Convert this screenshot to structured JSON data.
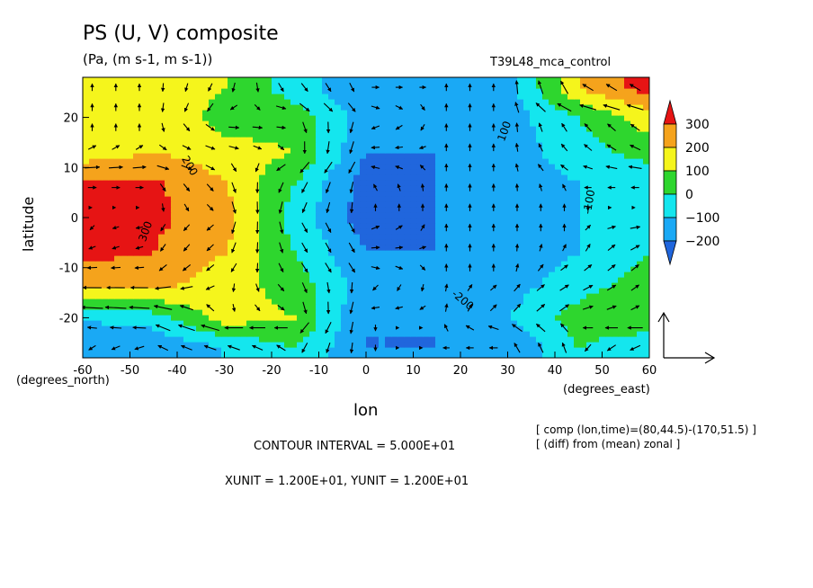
{
  "title": "PS (U, V) composite",
  "subtitle": "(Pa, (m s-1, m s-1))",
  "run_label": "T39L48_mca_control",
  "x_axis_label": "lon",
  "x_units": "(degrees_east)",
  "y_axis_label": "latitude",
  "y_units": "(degrees_north)",
  "note_lines": [
    "[ comp (lon,time)=(80,44.5)-(170,51.5) ]",
    "[ (diff) from (mean) zonal ]"
  ],
  "contour_interval": "CONTOUR INTERVAL = 5.000E+01",
  "unit_info": "XUNIT = 1.200E+01, YUNIT = 1.200E+01",
  "chart_data": {
    "type": "heatmap",
    "variable": "PS",
    "vector": "(U, V)",
    "x": [
      -60,
      -45,
      -30,
      -15,
      0,
      15,
      30,
      45,
      60
    ],
    "y": [
      -26,
      -20,
      -13,
      -7,
      0,
      7,
      13,
      20,
      26
    ],
    "z": [
      [
        -150,
        -200,
        -100,
        0,
        -200,
        -200,
        -200,
        0,
        -100
      ],
      [
        -100,
        -50,
        150,
        100,
        -200,
        -200,
        -100,
        50,
        100
      ],
      [
        250,
        250,
        150,
        50,
        -150,
        -200,
        -150,
        -50,
        50
      ],
      [
        320,
        300,
        200,
        0,
        -200,
        -200,
        -150,
        -100,
        0
      ],
      [
        320,
        320,
        250,
        -50,
        -250,
        -200,
        -150,
        -100,
        -100
      ],
      [
        320,
        320,
        200,
        0,
        -250,
        -200,
        -150,
        -100,
        -100
      ],
      [
        150,
        200,
        150,
        100,
        -200,
        -200,
        -150,
        -50,
        50
      ],
      [
        150,
        200,
        50,
        50,
        -150,
        -200,
        -150,
        0,
        150
      ],
      [
        150,
        200,
        100,
        -50,
        -200,
        -200,
        -150,
        200,
        350
      ]
    ],
    "xlim": [
      -60,
      60
    ],
    "ylim": [
      -28,
      28
    ],
    "xticks": [
      -60,
      -50,
      -40,
      -30,
      -20,
      -10,
      0,
      10,
      20,
      30,
      40,
      50,
      60
    ],
    "yticks": [
      -20,
      -10,
      0,
      10,
      20
    ],
    "contour_labels": [
      "300",
      "200",
      "100",
      "-100",
      "-200"
    ],
    "levels": [
      -200,
      -100,
      0,
      100,
      200,
      300
    ],
    "colorbar_labels": [
      "300",
      "200",
      "100",
      "0",
      "−100",
      "−200"
    ],
    "colors": [
      "#2066dd",
      "#1aa9f5",
      "#14e6ee",
      "#2ed62e",
      "#f5f51c",
      "#f5a31c",
      "#e61414"
    ],
    "reference_vector": "XUNIT = YUNIT = 12"
  }
}
